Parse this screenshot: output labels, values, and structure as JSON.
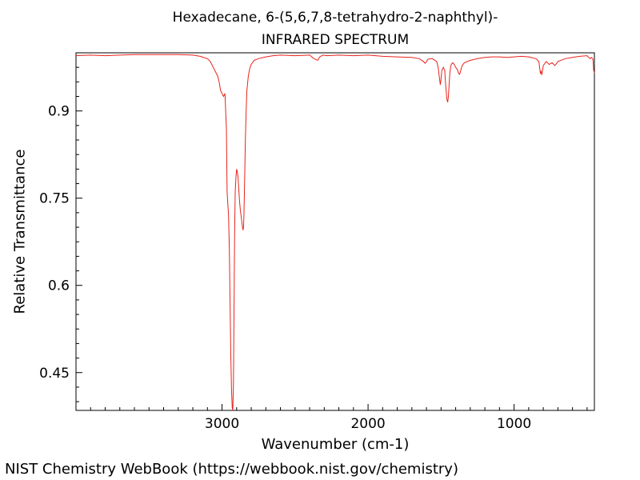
{
  "chart_data": {
    "type": "line",
    "title": "Hexadecane, 6-(5,6,7,8-tetrahydro-2-naphthyl)-",
    "subtitle": "INFRARED SPECTRUM",
    "xlabel": "Wavenumber (cm-1)",
    "ylabel": "Relative Transmittance",
    "xlim": [
      4000,
      450
    ],
    "ylim": [
      0.385,
      1.0
    ],
    "x_reversed": true,
    "xticks": [
      3000,
      2000,
      1000
    ],
    "xtick_labels": [
      "3000",
      "2000",
      "1000"
    ],
    "yticks": [
      0.45,
      0.6,
      0.75,
      0.9
    ],
    "ytick_labels": [
      "0.45",
      "0.6",
      "0.75",
      "0.9"
    ],
    "grid": false,
    "series": [
      {
        "color": "#e8231b",
        "x": [
          4000,
          3900,
          3800,
          3700,
          3600,
          3500,
          3400,
          3300,
          3200,
          3150,
          3100,
          3080,
          3060,
          3040,
          3030,
          3020,
          3010,
          3000,
          2990,
          2980,
          2970,
          2965,
          2960,
          2955,
          2950,
          2945,
          2940,
          2935,
          2930,
          2926,
          2922,
          2918,
          2914,
          2910,
          2905,
          2900,
          2895,
          2890,
          2885,
          2880,
          2875,
          2870,
          2865,
          2860,
          2856,
          2853,
          2850,
          2845,
          2840,
          2835,
          2830,
          2820,
          2810,
          2800,
          2780,
          2750,
          2700,
          2650,
          2600,
          2500,
          2400,
          2370,
          2345,
          2330,
          2310,
          2280,
          2200,
          2100,
          2000,
          1950,
          1900,
          1800,
          1700,
          1650,
          1620,
          1610,
          1600,
          1590,
          1560,
          1530,
          1520,
          1513,
          1505,
          1500,
          1495,
          1485,
          1475,
          1470,
          1465,
          1460,
          1455,
          1450,
          1445,
          1440,
          1435,
          1430,
          1420,
          1410,
          1400,
          1390,
          1380,
          1375,
          1370,
          1365,
          1360,
          1350,
          1340,
          1320,
          1300,
          1250,
          1200,
          1150,
          1100,
          1050,
          1000,
          950,
          900,
          850,
          830,
          825,
          820,
          815,
          810,
          805,
          800,
          780,
          760,
          740,
          720,
          700,
          650,
          600,
          550,
          500,
          480,
          470,
          460,
          455,
          450
        ],
        "y": [
          0.995,
          0.996,
          0.995,
          0.996,
          0.997,
          0.997,
          0.997,
          0.997,
          0.996,
          0.994,
          0.99,
          0.985,
          0.975,
          0.965,
          0.96,
          0.95,
          0.935,
          0.93,
          0.925,
          0.93,
          0.87,
          0.76,
          0.74,
          0.72,
          0.66,
          0.57,
          0.48,
          0.42,
          0.39,
          0.385,
          0.43,
          0.55,
          0.68,
          0.76,
          0.785,
          0.8,
          0.795,
          0.785,
          0.765,
          0.745,
          0.73,
          0.72,
          0.71,
          0.7,
          0.695,
          0.7,
          0.72,
          0.78,
          0.85,
          0.9,
          0.935,
          0.96,
          0.973,
          0.98,
          0.987,
          0.99,
          0.993,
          0.995,
          0.996,
          0.995,
          0.996,
          0.99,
          0.987,
          0.993,
          0.996,
          0.995,
          0.996,
          0.995,
          0.996,
          0.995,
          0.994,
          0.993,
          0.992,
          0.99,
          0.985,
          0.982,
          0.985,
          0.989,
          0.99,
          0.985,
          0.975,
          0.96,
          0.945,
          0.955,
          0.97,
          0.975,
          0.97,
          0.95,
          0.935,
          0.92,
          0.915,
          0.925,
          0.945,
          0.965,
          0.975,
          0.98,
          0.983,
          0.98,
          0.975,
          0.972,
          0.965,
          0.963,
          0.965,
          0.97,
          0.975,
          0.98,
          0.983,
          0.985,
          0.987,
          0.99,
          0.992,
          0.993,
          0.993,
          0.992,
          0.993,
          0.994,
          0.993,
          0.99,
          0.985,
          0.975,
          0.965,
          0.968,
          0.962,
          0.97,
          0.978,
          0.985,
          0.98,
          0.983,
          0.978,
          0.985,
          0.99,
          0.992,
          0.994,
          0.995,
          0.99,
          0.992,
          0.989,
          0.97,
          0.965
        ]
      }
    ]
  },
  "footer": {
    "credit": "NIST Chemistry WebBook (https://webbook.nist.gov/chemistry)"
  }
}
